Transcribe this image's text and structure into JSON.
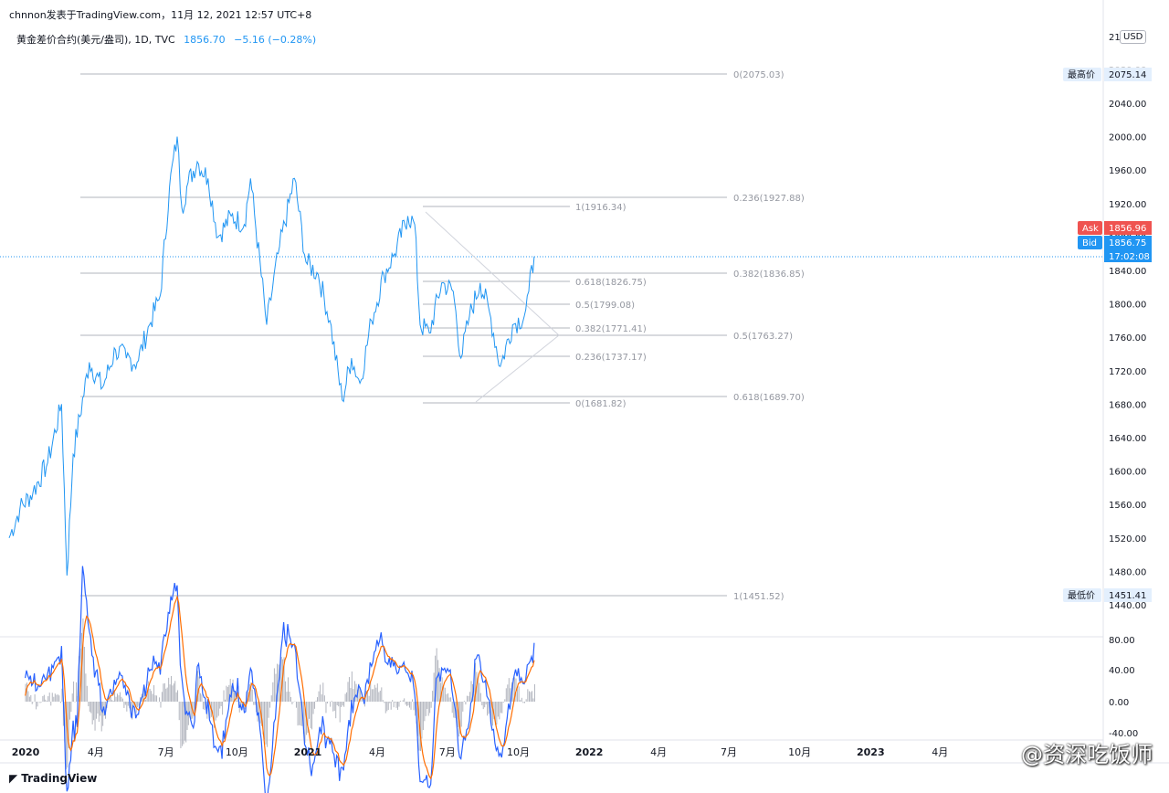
{
  "header": {
    "title": "chnnon发表于TradingView.com，11月 12, 2021 12:57 UTC+8"
  },
  "legend": {
    "symbol": "黄金差价合约(美元/盎司), 1D, TVC",
    "price": "1856.70",
    "change": "−5.16 (−0.28%)"
  },
  "currency": "USD",
  "colors": {
    "price_line": "#2196f3",
    "macd_line": "#2962ff",
    "signal_line": "#ff6d00",
    "hist": "#b2b5be",
    "ask": "#ef5350",
    "bid": "#2196f3",
    "fib_grey": "#9598a1"
  },
  "axis_labels": {
    "y_ticks": [
      "2040.00",
      "2000.00",
      "1960.00",
      "1920.00",
      "1880.00",
      "1840.00",
      "1800.00",
      "1760.00",
      "1720.00",
      "1680.00",
      "1640.00",
      "1600.00",
      "1560.00",
      "1520.00",
      "1480.00",
      "1440.00"
    ],
    "y_top_partial": "21",
    "y_partial_2": "2080.00",
    "macd_ticks": [
      "80.00",
      "40.00",
      "0.00",
      "-40.00"
    ],
    "x_ticks": [
      "2020",
      "4月",
      "7月",
      "10月",
      "2021",
      "4月",
      "7月",
      "10月",
      "2022",
      "4月",
      "7月",
      "10月",
      "2023",
      "4月"
    ]
  },
  "price_tags": {
    "high_label": "最高价",
    "high_value": "2075.14",
    "low_label": "最低价",
    "low_value": "1451.41",
    "ask_label": "Ask",
    "ask_value": "1856.96",
    "bid_label": "Bid",
    "bid_value": "1856.75",
    "timer": "17:02:08"
  },
  "fib_outer": [
    "0(2075.03)",
    "0.236(1927.88)",
    "0.382(1836.85)",
    "0.5(1763.27)",
    "0.618(1689.70)",
    "1(1451.52)"
  ],
  "fib_inner": [
    "1(1916.34)",
    "0.618(1826.75)",
    "0.5(1799.08)",
    "0.382(1771.41)",
    "0.236(1737.17)",
    "0(1681.82)"
  ],
  "footer": {
    "brand": "TradingView"
  },
  "watermark": "@资深吃饭师",
  "chart_data": {
    "type": "line",
    "title": "黄金差价合约(美元/盎司), 1D, TVC",
    "ylim": [
      1430,
      2090
    ],
    "series": [
      {
        "x": [
          "2020-01-01",
          "2020-01-15",
          "2020-02-01",
          "2020-02-20",
          "2020-03-09",
          "2020-03-16",
          "2020-03-24",
          "2020-04-14",
          "2020-05-01",
          "2020-05-18",
          "2020-06-01",
          "2020-06-15",
          "2020-07-01",
          "2020-07-15",
          "2020-07-27",
          "2020-08-06",
          "2020-08-12",
          "2020-08-20",
          "2020-09-01",
          "2020-09-15",
          "2020-09-28",
          "2020-10-15",
          "2020-11-01",
          "2020-11-09",
          "2020-11-30",
          "2020-12-15",
          "2021-01-05",
          "2021-01-20",
          "2021-02-05",
          "2021-02-20",
          "2021-03-08",
          "2021-03-20",
          "2021-03-31",
          "2021-04-15",
          "2021-05-01",
          "2021-05-15",
          "2021-06-01",
          "2021-06-10",
          "2021-06-17",
          "2021-06-29",
          "2021-07-15",
          "2021-07-30",
          "2021-08-09",
          "2021-08-20",
          "2021-09-03",
          "2021-09-15",
          "2021-09-29",
          "2021-10-15",
          "2021-10-30",
          "2021-11-05",
          "2021-11-12"
        ],
        "values": [
          1520,
          1555,
          1575,
          1610,
          1680,
          1475,
          1620,
          1730,
          1700,
          1745,
          1735,
          1730,
          1775,
          1810,
          1940,
          2000,
          1915,
          1945,
          1970,
          1950,
          1880,
          1905,
          1895,
          1950,
          1775,
          1860,
          1950,
          1850,
          1835,
          1780,
          1685,
          1735,
          1705,
          1780,
          1835,
          1860,
          1905,
          1895,
          1775,
          1765,
          1825,
          1815,
          1735,
          1785,
          1825,
          1790,
          1725,
          1775,
          1785,
          1815,
          1856.7
        ]
      }
    ],
    "macd": {
      "macd_ticks": [
        80,
        40,
        0,
        -40
      ],
      "series_names": []
    }
  }
}
